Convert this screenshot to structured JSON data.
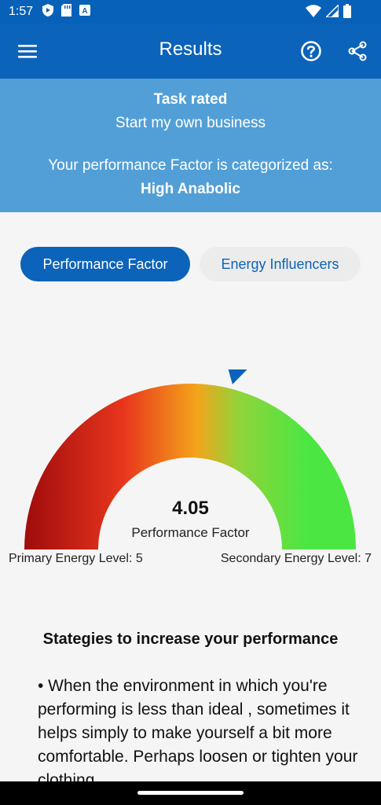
{
  "status_bar": {
    "time": "1:57",
    "icons": [
      "shield-icon",
      "sd-card-icon",
      "a-box-icon",
      "wifi-icon",
      "signal-icon",
      "battery-icon"
    ]
  },
  "app_bar": {
    "title": "Results",
    "icons": [
      "menu-icon",
      "help-icon",
      "share-icon"
    ],
    "color": "#0b63ba"
  },
  "summary": {
    "heading": "Task rated",
    "task": "Start my own business",
    "category_prompt": "Your performance Factor is categorized as:",
    "category": "High Anabolic",
    "background_color": "#529fd7"
  },
  "tabs": [
    {
      "label": "Performance Factor",
      "selected": true
    },
    {
      "label": "Energy Influencers",
      "selected": false
    }
  ],
  "gauge": {
    "value": "4.05",
    "label": "Performance Factor",
    "primary": "Primary Energy Level: 5",
    "secondary": "Secondary Energy Level: 7",
    "pointer_fraction": 0.58,
    "colors": [
      "#9f0c0c",
      "#e8361d",
      "#f4a41a",
      "#8fd43a",
      "#4ce643"
    ]
  },
  "strategies": {
    "title": "Stategies to increase your performance",
    "body": "• When the environment in which you're performing is less than ideal , sometimes it helps simply to make yourself a bit more comfortable. Perhaps loosen or tighten your clothing"
  }
}
